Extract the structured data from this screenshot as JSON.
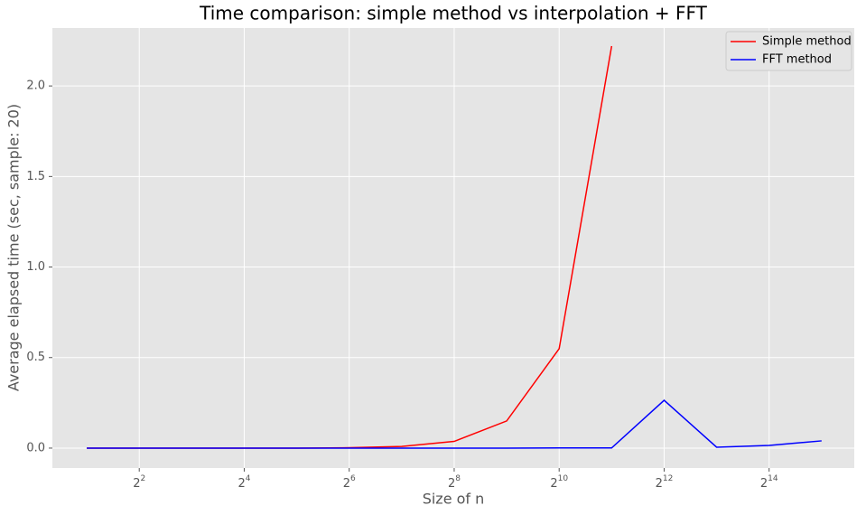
{
  "chart_data": {
    "type": "line",
    "title": "Time comparison: simple method vs interpolation + FFT",
    "xlabel": "Size of n",
    "ylabel": "Average elapsed time (sec, sample: 20)",
    "x": [
      2,
      4,
      8,
      16,
      32,
      64,
      128,
      256,
      512,
      1024,
      2048,
      4096,
      8192,
      16384,
      32768
    ],
    "series": [
      {
        "name": "Simple method",
        "color": "#ff0000",
        "values": [
          0,
          0,
          0,
          0,
          0,
          0.002,
          0.009,
          0.037,
          0.15,
          0.549,
          2.22,
          null,
          null,
          null,
          null
        ]
      },
      {
        "name": "FFT method",
        "color": "#0000ff",
        "values": [
          0,
          0,
          0,
          0,
          0,
          0,
          0,
          0,
          0,
          0.001,
          0.001,
          0.264,
          0.005,
          0.015,
          0.04
        ]
      }
    ],
    "xscale": "log2",
    "xlim": [
      1.27,
      50440
    ],
    "xticks": [
      {
        "value": 4,
        "label": "2",
        "exponent": "2"
      },
      {
        "value": 16,
        "label": "2",
        "exponent": "4"
      },
      {
        "value": 64,
        "label": "2",
        "exponent": "6"
      },
      {
        "value": 256,
        "label": "2",
        "exponent": "8"
      },
      {
        "value": 1024,
        "label": "2",
        "exponent": "10"
      },
      {
        "value": 4096,
        "label": "2",
        "exponent": "12"
      },
      {
        "value": 16384,
        "label": "2",
        "exponent": "14"
      }
    ],
    "ylim": [
      -0.11,
      2.32
    ],
    "yticks": [
      {
        "value": 0,
        "label": "0.0"
      },
      {
        "value": 0.5,
        "label": "0.5"
      },
      {
        "value": 1,
        "label": "1.0"
      },
      {
        "value": 1.5,
        "label": "1.5"
      },
      {
        "value": 2,
        "label": "2.0"
      }
    ],
    "grid": true,
    "legend": "upper right"
  }
}
